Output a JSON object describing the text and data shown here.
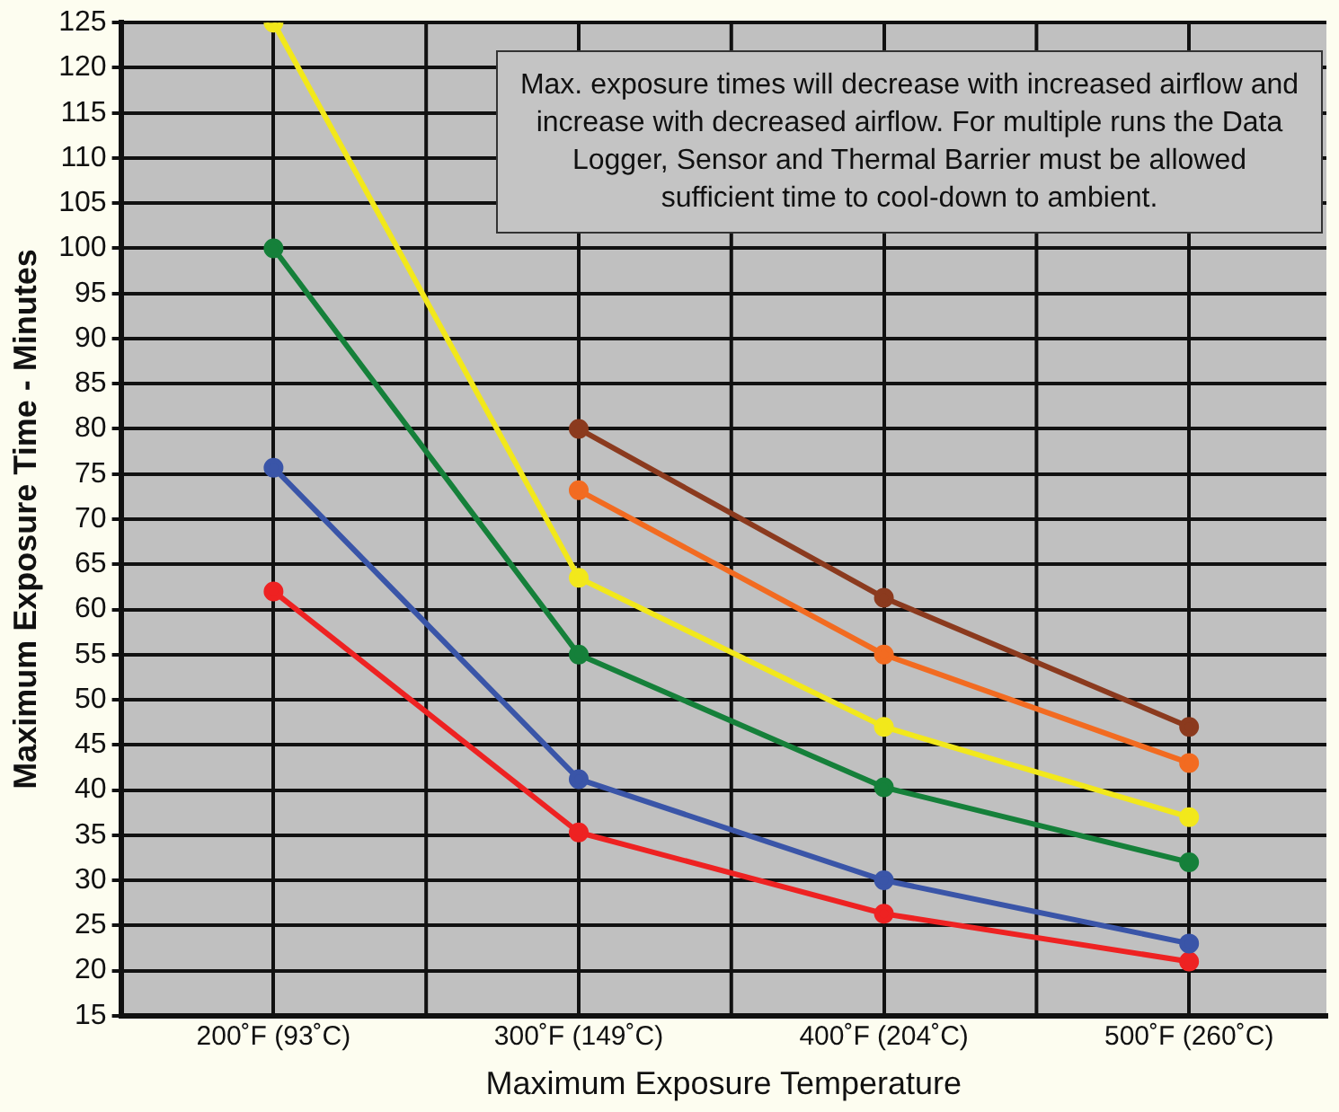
{
  "chart_data": {
    "type": "line",
    "xlabel": "Maximum Exposure Temperature",
    "ylabel": "Maximum Exposure Time - Minutes",
    "categories": [
      "200˚F (93˚C)",
      "300˚F (149˚C)",
      "400˚F (204˚C)",
      "500˚F (260˚C)"
    ],
    "series": [
      {
        "color": "#8b3a1e",
        "values": [
          null,
          80,
          61.3,
          47
        ]
      },
      {
        "color": "#f26b21",
        "values": [
          null,
          73.2,
          55,
          43
        ]
      },
      {
        "color": "#f2e81b",
        "values": [
          125,
          63.5,
          47,
          37
        ]
      },
      {
        "color": "#15803a",
        "values": [
          100,
          55,
          40.3,
          32
        ]
      },
      {
        "color": "#3a55a8",
        "values": [
          75.7,
          41.2,
          30,
          23
        ]
      },
      {
        "color": "#ee2222",
        "values": [
          62,
          35.3,
          26.3,
          21
        ]
      }
    ],
    "ylim": [
      15,
      125
    ],
    "yticks": [
      15,
      20,
      25,
      30,
      35,
      40,
      45,
      50,
      55,
      60,
      65,
      70,
      75,
      80,
      85,
      90,
      95,
      100,
      105,
      110,
      115,
      120,
      125
    ],
    "grid": true,
    "marker": "circle",
    "line_style": "solid",
    "legend": false,
    "annotations": [
      "Max. exposure times will decrease with increased airflow and increase with decreased airflow. For multiple runs the Data Logger, Sensor and Thermal Barrier must be allowed sufficient time to cool-down to ambient."
    ]
  }
}
